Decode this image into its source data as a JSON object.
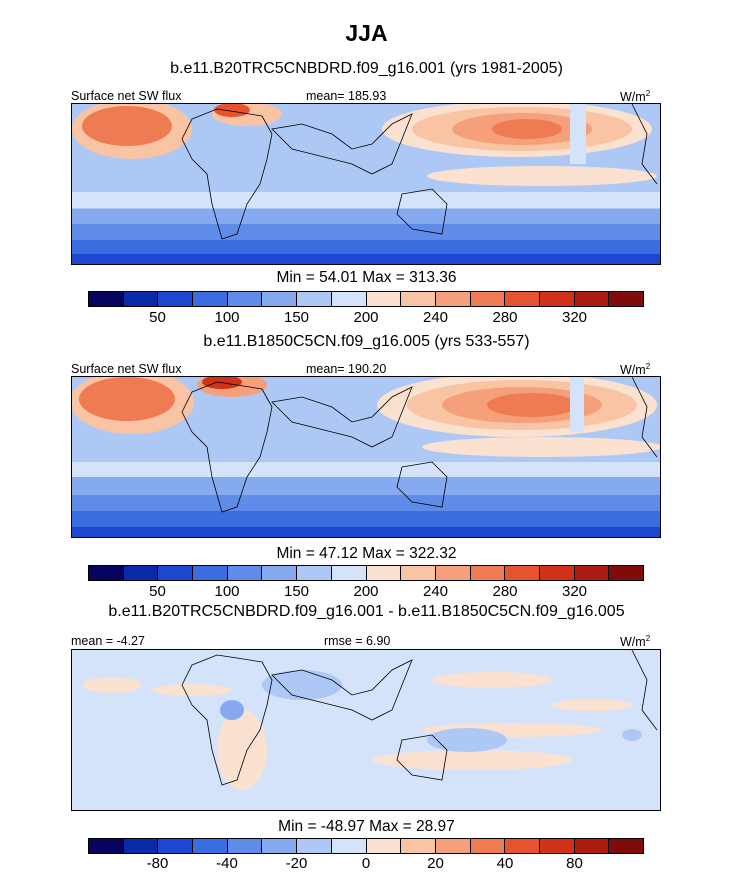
{
  "title": "JJA",
  "colors": [
    "#07045f",
    "#0b2aa8",
    "#1d47d0",
    "#3b6ce0",
    "#5f8ce8",
    "#86aaf0",
    "#aec8f6",
    "#d4e3fa",
    "#fbe1cf",
    "#f9c4a4",
    "#f5a07b",
    "#ef7b52",
    "#e5542f",
    "#cf3119",
    "#a81d10",
    "#7d0c0a"
  ],
  "panel1": {
    "subtitle": "b.e11.B20TRC5CNBDRD.f09_g16.001 (yrs 1981-2005)",
    "left_label": "Surface net SW flux",
    "center_label": "mean= 185.93",
    "unit_label": "W/m",
    "unit_sup": "2",
    "minmax": "Min =  54.01 Max = 313.36",
    "ticks": [
      "50",
      "100",
      "150",
      "200",
      "240",
      "280",
      "320"
    ]
  },
  "panel2": {
    "subtitle": "b.e11.B1850C5CN.f09_g16.005 (yrs 533-557)",
    "left_label": "Surface net SW flux",
    "center_label": "mean= 190.20",
    "unit_label": "W/m",
    "unit_sup": "2",
    "minmax": "Min =  47.12 Max = 322.32",
    "ticks": [
      "50",
      "100",
      "150",
      "200",
      "240",
      "280",
      "320"
    ]
  },
  "panel3": {
    "subtitle": "b.e11.B20TRC5CNBDRD.f09_g16.001 - b.e11.B1850C5CN.f09_g16.005",
    "left_label": "mean =  -4.27",
    "center_label": "rmse =   6.90",
    "unit_label": "W/m",
    "unit_sup": "2",
    "minmax": "Min = -48.97 Max =  28.97",
    "ticks": [
      "-80",
      "-40",
      "-20",
      "0",
      "20",
      "40",
      "80"
    ]
  }
}
